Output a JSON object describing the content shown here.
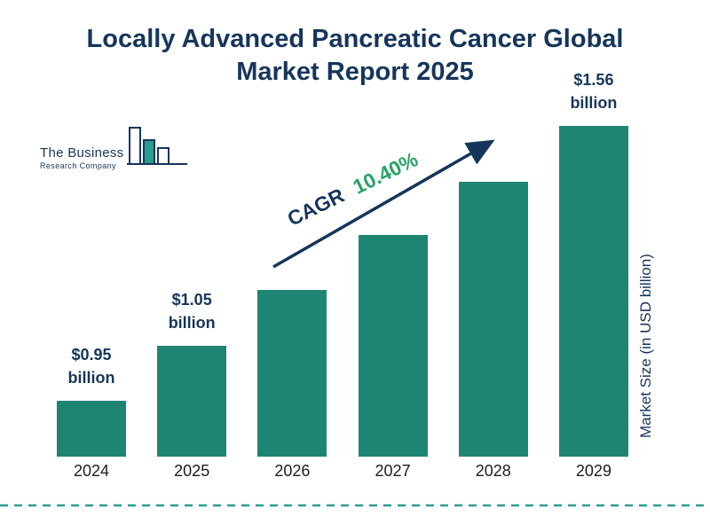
{
  "title": "Locally Advanced Pancreatic Cancer Global Market Report 2025",
  "logo": {
    "line1": "The Business",
    "line2": "Research Company"
  },
  "annotation": {
    "cagr_label": "CAGR",
    "cagr_value": "10.40%"
  },
  "y_axis_label": "Market Size (in USD billion)",
  "bars": [
    {
      "year": "2024",
      "label_value": "$0.95",
      "label_unit": "billion"
    },
    {
      "year": "2025",
      "label_value": "$1.05",
      "label_unit": "billion"
    },
    {
      "year": "2026"
    },
    {
      "year": "2027"
    },
    {
      "year": "2028"
    },
    {
      "year": "2029",
      "label_value": "$1.56",
      "label_unit": "billion"
    }
  ],
  "colors": {
    "bar": "#1f8573",
    "navy": "#16355a",
    "green": "#27a366",
    "teal": "#2a9d8f"
  },
  "chart_data": {
    "type": "bar",
    "categories": [
      "2024",
      "2025",
      "2026",
      "2027",
      "2028",
      "2029"
    ],
    "values": [
      0.95,
      1.05,
      1.16,
      1.28,
      1.41,
      1.56
    ],
    "value_unit": "USD billion",
    "data_labels": [
      "$0.95 billion",
      "$1.05 billion",
      null,
      null,
      null,
      "$1.56 billion"
    ],
    "title": "Locally Advanced Pancreatic Cancer Global Market Report 2025",
    "xlabel": "",
    "ylabel": "Market Size (in USD billion)",
    "cagr": "10.40%",
    "grid": false,
    "legend": false,
    "bar_color": "#1f8573"
  }
}
